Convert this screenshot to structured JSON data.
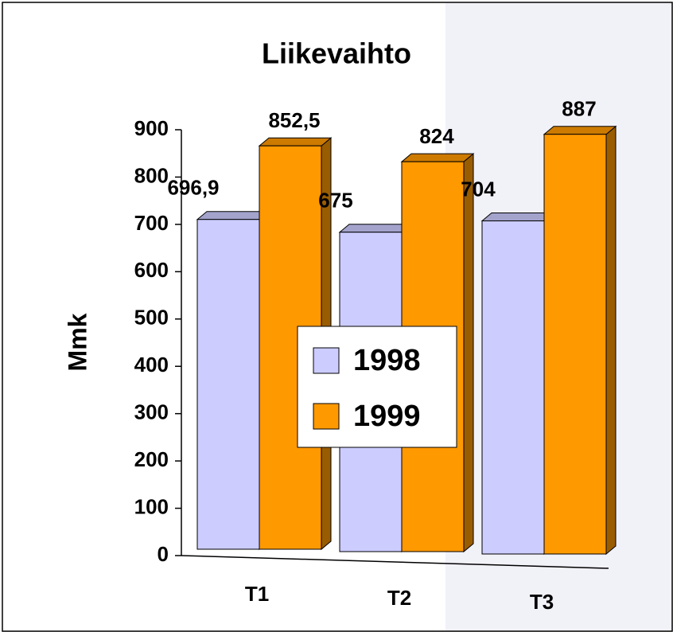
{
  "chart_data": {
    "type": "bar3d",
    "title": "Liikevaihto",
    "y_label": "Mmk",
    "categories": [
      "T1",
      "T2",
      "T3"
    ],
    "series": [
      {
        "name": "1998",
        "color": "#ccccff",
        "values": [
          696.9,
          675,
          704
        ],
        "value_labels": [
          "696,9",
          "675",
          "704"
        ]
      },
      {
        "name": "1999",
        "color": "#ff9900",
        "values": [
          852.5,
          824,
          887
        ],
        "value_labels": [
          "852,5",
          "824",
          "887"
        ]
      }
    ],
    "ylim": [
      0,
      900
    ],
    "yticks": [
      0,
      100,
      200,
      300,
      400,
      500,
      600,
      700,
      800,
      900
    ],
    "legend": "center"
  }
}
